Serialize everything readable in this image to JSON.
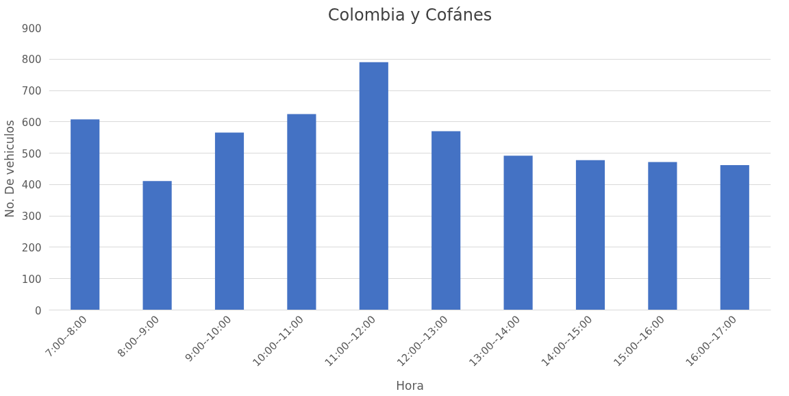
{
  "chart_data": {
    "type": "bar",
    "title": "Colombia y Cofánes",
    "xlabel": "Hora",
    "ylabel": "No. De vehiculos",
    "categories": [
      "7:00--8:00",
      "8:00--9:00",
      "9:00--10:00",
      "10:00--11:00",
      "11:00--12:00",
      "12:00--13:00",
      "13:00--14:00",
      "14:00--15:00",
      "15:00--16:00",
      "16:00--17:00"
    ],
    "values": [
      608,
      411,
      566,
      625,
      790,
      570,
      492,
      478,
      472,
      462
    ],
    "color": "#4472c4",
    "ylim": [
      0,
      900
    ],
    "yticks": [
      0,
      100,
      200,
      300,
      400,
      500,
      600,
      700,
      800,
      900
    ],
    "grid": "y"
  }
}
